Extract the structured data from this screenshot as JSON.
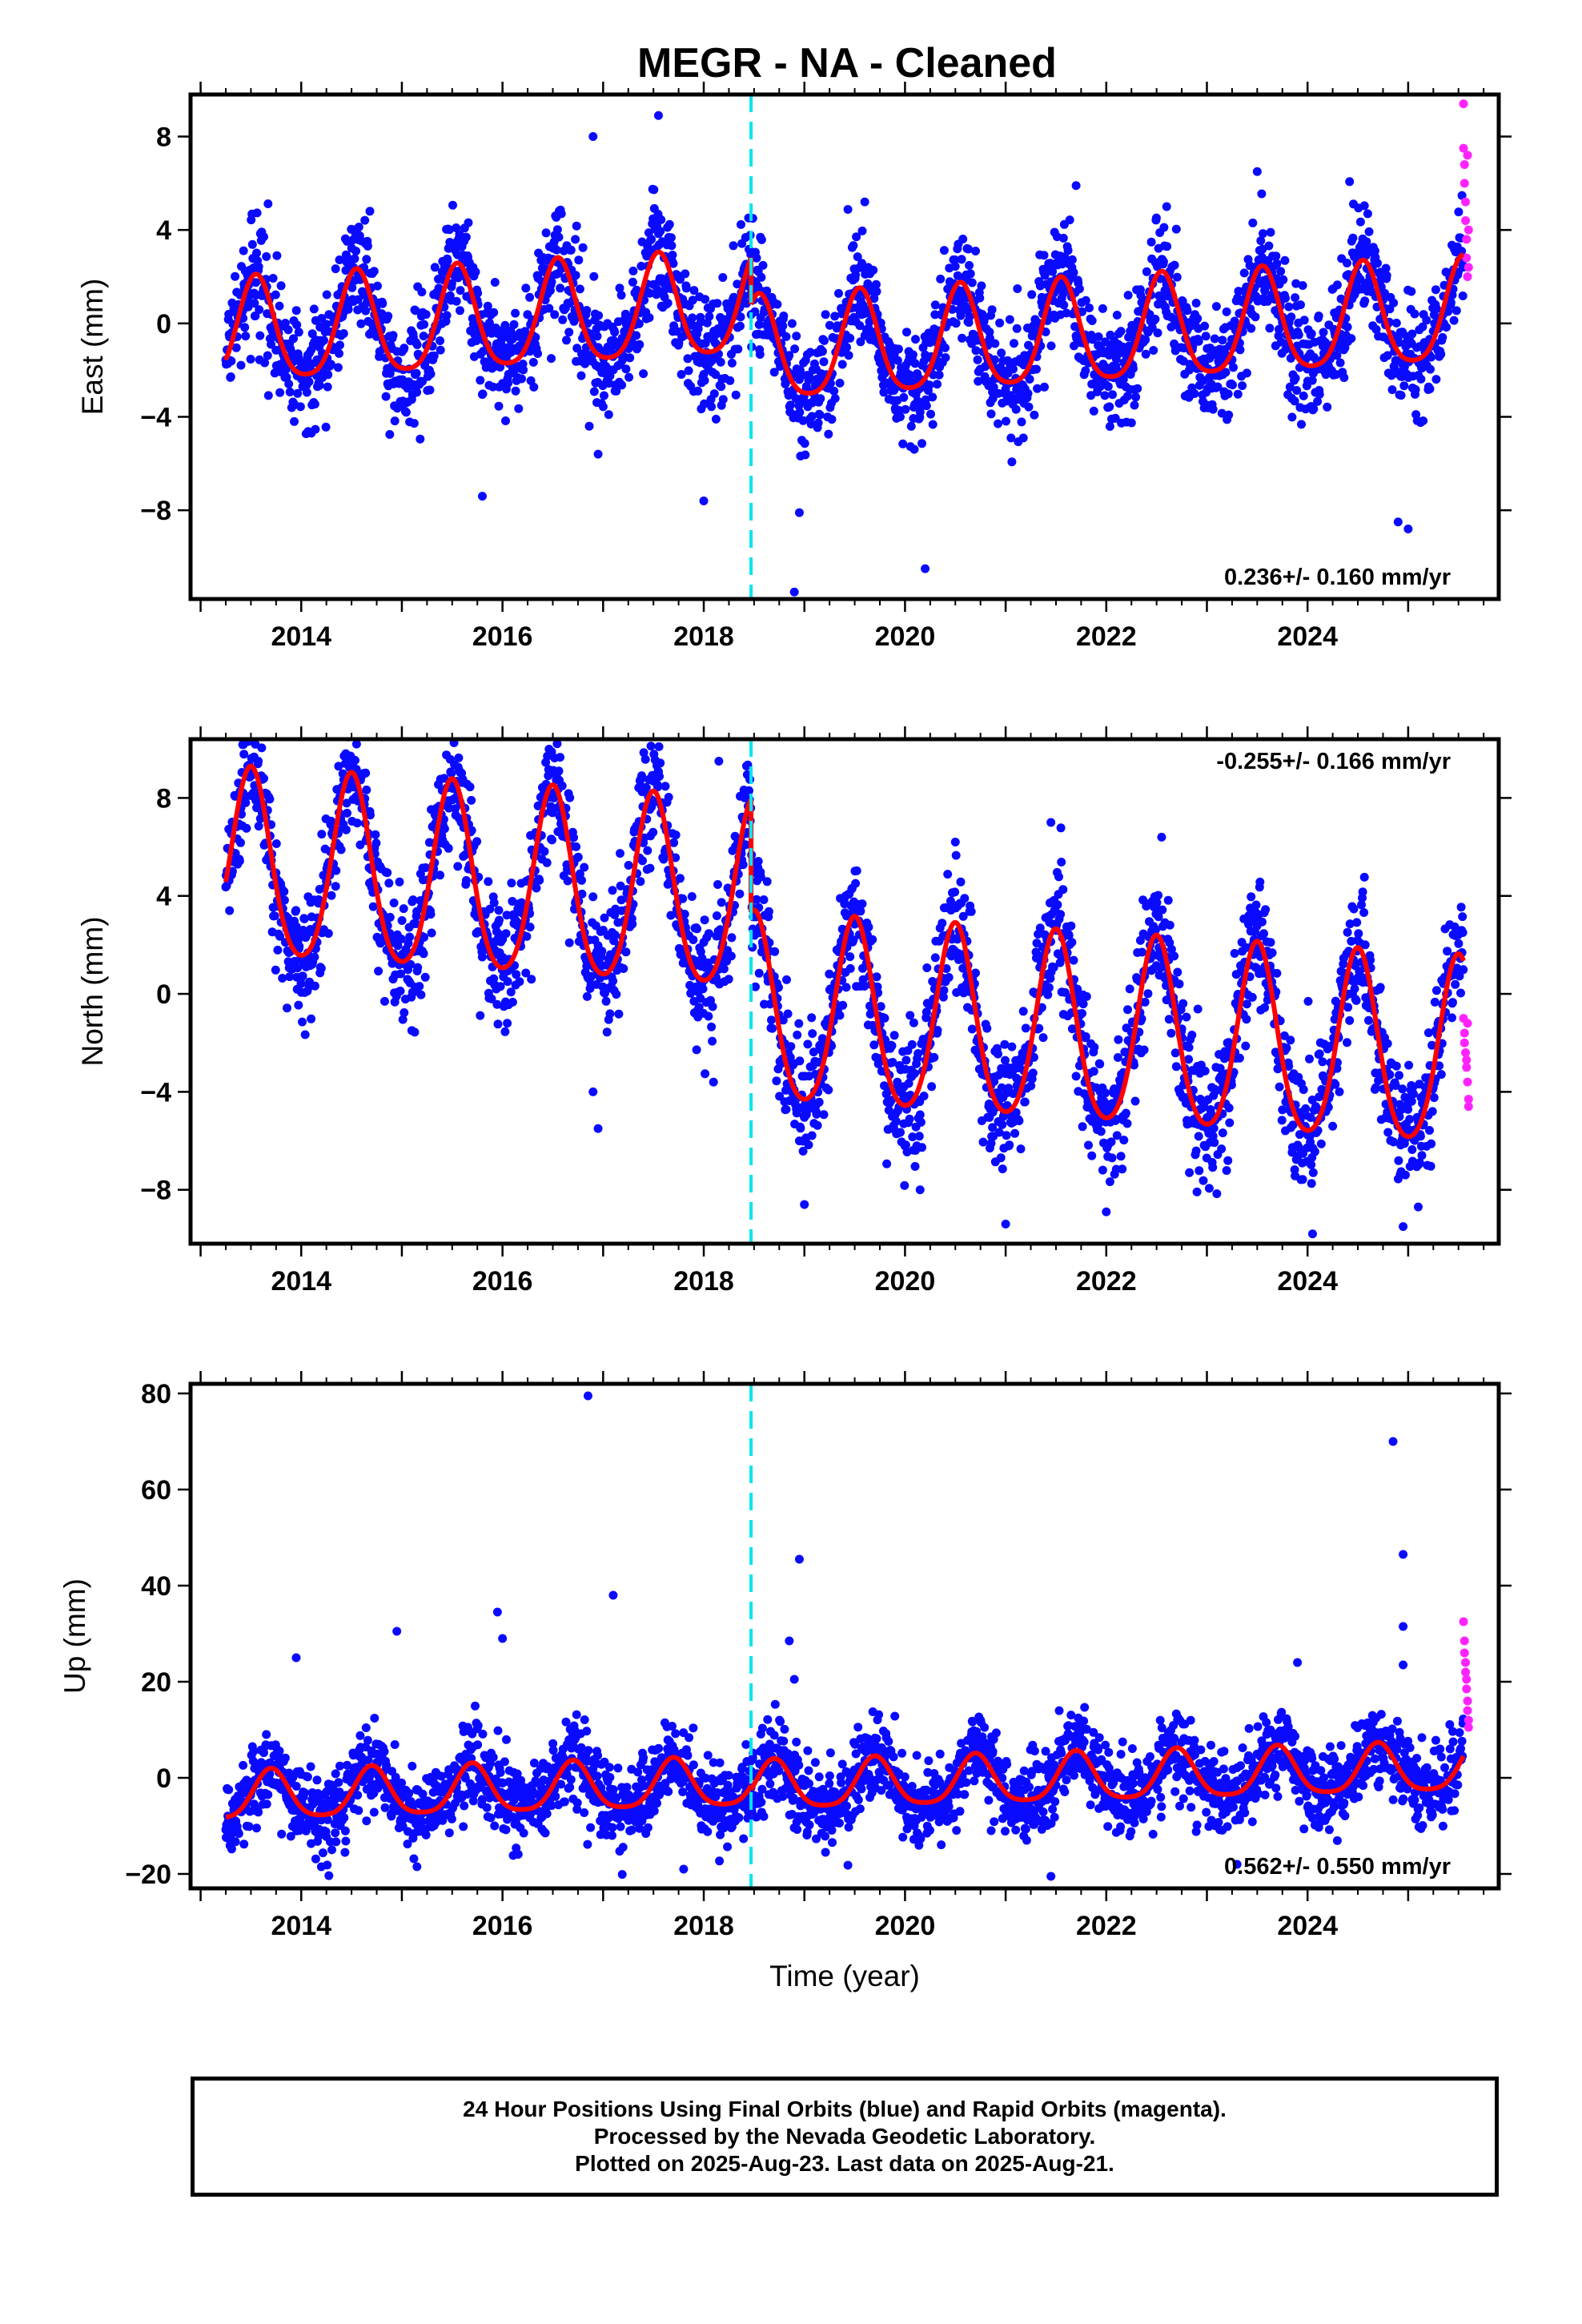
{
  "title": "MEGR  - NA - Cleaned",
  "colors": {
    "final_orbits": "#0a0aff",
    "rapid_orbits": "#ff22ff",
    "model": "#ff0000",
    "equipment_change": "#00e5ee"
  },
  "chart_data": [
    {
      "type": "scatter",
      "component": "east",
      "ylabel": "East (mm)",
      "xlabel": "",
      "xlim": [
        2012.9,
        2025.9
      ],
      "ylim": [
        -11.8,
        9.8
      ],
      "x_ticks": [
        2014,
        2016,
        2018,
        2020,
        2022,
        2024
      ],
      "y_ticks": [
        -8,
        -4,
        0,
        4,
        8
      ],
      "equipment_change_x": 2018.47,
      "rate_label": "0.236+/- 0.160 mm/yr",
      "rate_label_position": "bottom-right",
      "model": {
        "offset_before": 0.8,
        "offset_after": -1.2,
        "annual_amplitude": 2.2,
        "annual_peak_phase": 0.55,
        "semiannual_amplitude": 0.4,
        "trend_mm_per_yr": 0.236
      },
      "scatter_sigma": 1.2,
      "outliers": [
        {
          "x": 2016.9,
          "y": 8.0
        },
        {
          "x": 2017.55,
          "y": 8.9
        },
        {
          "x": 2015.8,
          "y": -7.4
        },
        {
          "x": 2018.0,
          "y": -7.6
        },
        {
          "x": 2018.9,
          "y": -11.5
        },
        {
          "x": 2020.2,
          "y": -10.5
        },
        {
          "x": 2016.95,
          "y": -5.6
        },
        {
          "x": 2014.1,
          "y": -4.7
        },
        {
          "x": 2025.0,
          "y": -8.8
        },
        {
          "x": 2024.9,
          "y": -8.5
        },
        {
          "x": 2019.6,
          "y": 5.2
        },
        {
          "x": 2021.7,
          "y": 5.9
        },
        {
          "x": 2022.6,
          "y": 5.0
        },
        {
          "x": 2023.5,
          "y": 6.5
        },
        {
          "x": 2018.95,
          "y": -8.1
        }
      ],
      "rapid_orbit_points": [
        {
          "x": 2025.55,
          "y": 9.4
        },
        {
          "x": 2025.55,
          "y": 7.5
        },
        {
          "x": 2025.56,
          "y": 6.8
        },
        {
          "x": 2025.56,
          "y": 6.0
        },
        {
          "x": 2025.57,
          "y": 5.2
        },
        {
          "x": 2025.57,
          "y": 4.4
        },
        {
          "x": 2025.58,
          "y": 3.6
        },
        {
          "x": 2025.58,
          "y": 2.8
        },
        {
          "x": 2025.59,
          "y": 2.0
        },
        {
          "x": 2025.59,
          "y": 7.2
        },
        {
          "x": 2025.6,
          "y": 4.0
        },
        {
          "x": 2025.6,
          "y": 2.4
        }
      ]
    },
    {
      "type": "scatter",
      "component": "north",
      "ylabel": "North (mm)",
      "xlabel": "",
      "xlim": [
        2012.9,
        2025.9
      ],
      "ylim": [
        -10.2,
        10.4
      ],
      "x_ticks": [
        2014,
        2016,
        2018,
        2020,
        2022,
        2024
      ],
      "y_ticks": [
        -8,
        -4,
        0,
        4,
        8
      ],
      "equipment_change_x": 2018.47,
      "rate_label": "-0.255+/- 0.166 mm/yr",
      "rate_label_position": "top-right",
      "model": {
        "offset_before": 3.6,
        "offset_after": -1.0,
        "annual_amplitude": 3.8,
        "annual_peak_phase": 0.5,
        "semiannual_amplitude": 0.5,
        "trend_mm_per_yr": -0.255
      },
      "scatter_sigma": 1.3,
      "outliers": [
        {
          "x": 2014.55,
          "y": 10.2
        },
        {
          "x": 2018.15,
          "y": 9.5
        },
        {
          "x": 2016.95,
          "y": -5.5
        },
        {
          "x": 2016.9,
          "y": -4.0
        },
        {
          "x": 2020.15,
          "y": -8.0
        },
        {
          "x": 2019.0,
          "y": -8.6
        },
        {
          "x": 2021.0,
          "y": -9.4
        },
        {
          "x": 2022.0,
          "y": -8.9
        },
        {
          "x": 2024.05,
          "y": -9.8
        },
        {
          "x": 2024.95,
          "y": -9.5
        },
        {
          "x": 2025.1,
          "y": -8.7
        },
        {
          "x": 2020.5,
          "y": 6.2
        },
        {
          "x": 2021.45,
          "y": 7.0
        },
        {
          "x": 2022.55,
          "y": 6.4
        }
      ],
      "rapid_orbit_points": [
        {
          "x": 2025.55,
          "y": -1.0
        },
        {
          "x": 2025.56,
          "y": -1.6
        },
        {
          "x": 2025.57,
          "y": -2.4
        },
        {
          "x": 2025.58,
          "y": -3.0
        },
        {
          "x": 2025.59,
          "y": -3.6
        },
        {
          "x": 2025.6,
          "y": -4.3
        },
        {
          "x": 2025.56,
          "y": -2.0
        },
        {
          "x": 2025.58,
          "y": -2.7
        },
        {
          "x": 2025.6,
          "y": -4.6
        },
        {
          "x": 2025.59,
          "y": -1.2
        }
      ]
    },
    {
      "type": "scatter",
      "component": "up",
      "ylabel": "Up (mm)",
      "xlabel": "Time (year)",
      "xlim": [
        2012.9,
        2025.9
      ],
      "ylim": [
        -23,
        82
      ],
      "x_ticks": [
        2014,
        2016,
        2018,
        2020,
        2022,
        2024
      ],
      "y_ticks": [
        -20,
        0,
        20,
        40,
        60,
        80
      ],
      "equipment_change_x": 2018.47,
      "rate_label": "0.562+/- 0.550 mm/yr",
      "rate_label_position": "bottom-right",
      "model": {
        "offset_before": -1.0,
        "offset_after": -1.8,
        "annual_amplitude": 5.0,
        "annual_peak_phase": 0.7,
        "semiannual_amplitude": 1.0,
        "trend_mm_per_yr": 0.562
      },
      "scatter_sigma": 4.2,
      "outliers": [
        {
          "x": 2016.85,
          "y": 79.5
        },
        {
          "x": 2017.1,
          "y": 38.0
        },
        {
          "x": 2015.95,
          "y": 34.5
        },
        {
          "x": 2016.0,
          "y": 29.0
        },
        {
          "x": 2014.95,
          "y": 30.5
        },
        {
          "x": 2013.95,
          "y": 25.0
        },
        {
          "x": 2018.95,
          "y": 45.5
        },
        {
          "x": 2018.85,
          "y": 28.5
        },
        {
          "x": 2018.9,
          "y": 20.5
        },
        {
          "x": 2024.85,
          "y": 70.0
        },
        {
          "x": 2024.95,
          "y": 46.5
        },
        {
          "x": 2024.95,
          "y": 31.5
        },
        {
          "x": 2024.95,
          "y": 23.5
        },
        {
          "x": 2023.9,
          "y": 24.0
        },
        {
          "x": 2021.45,
          "y": -20.5
        },
        {
          "x": 2017.8,
          "y": -19.0
        },
        {
          "x": 2015.15,
          "y": -18.5
        },
        {
          "x": 2014.2,
          "y": -18.5
        },
        {
          "x": 2023.3,
          "y": -18.0
        }
      ],
      "rapid_orbit_points": [
        {
          "x": 2025.55,
          "y": 32.5
        },
        {
          "x": 2025.56,
          "y": 28.5
        },
        {
          "x": 2025.56,
          "y": 26.0
        },
        {
          "x": 2025.57,
          "y": 24.0
        },
        {
          "x": 2025.57,
          "y": 22.0
        },
        {
          "x": 2025.58,
          "y": 20.5
        },
        {
          "x": 2025.58,
          "y": 18.5
        },
        {
          "x": 2025.59,
          "y": 16.0
        },
        {
          "x": 2025.59,
          "y": 14.0
        },
        {
          "x": 2025.6,
          "y": 12.0
        },
        {
          "x": 2025.6,
          "y": 10.5
        }
      ]
    }
  ],
  "footer": {
    "line1": "24 Hour Positions Using Final Orbits (blue) and Rapid Orbits (magenta).",
    "line2": "Processed by the Nevada Geodetic Laboratory.",
    "line3": "Plotted on 2025-Aug-23. Last data on 2025-Aug-21."
  }
}
